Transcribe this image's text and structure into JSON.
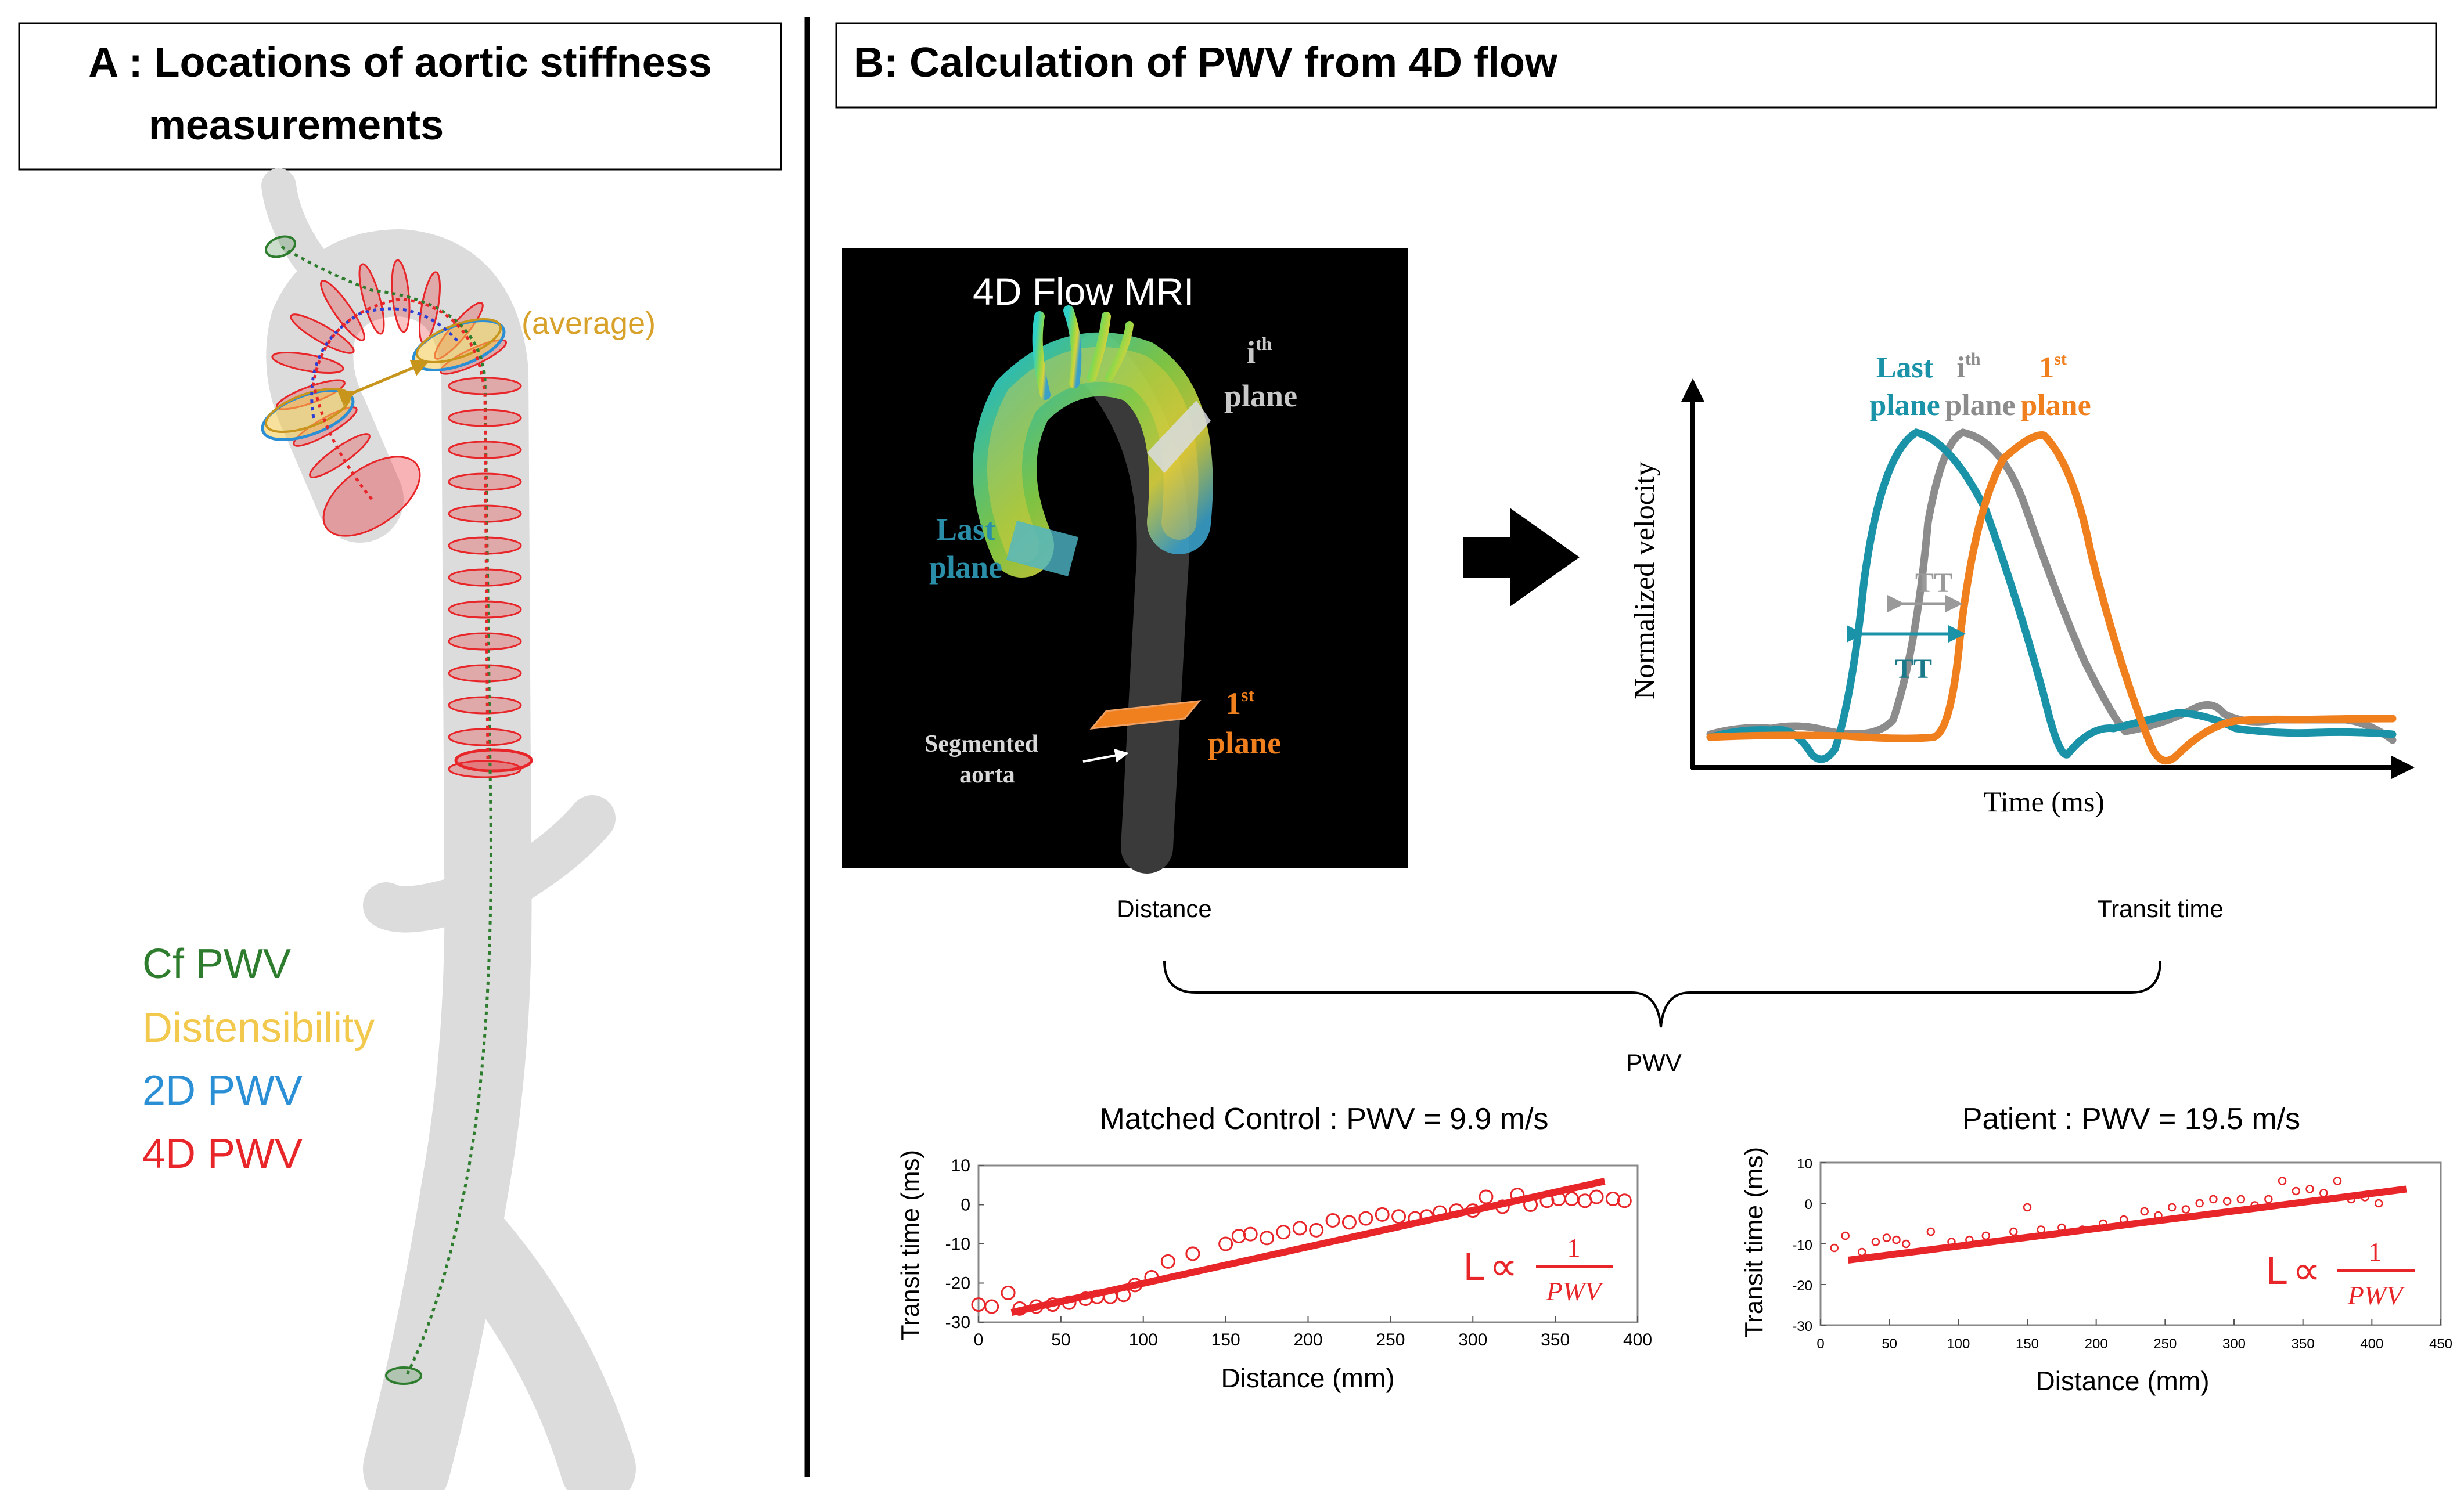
{
  "panel_a": {
    "title_line1": "A : Locations of aortic stiffness",
    "title_line2": "measurements",
    "average_label": "(average)",
    "legend": [
      {
        "label": "Cf PWV",
        "color": "#2e7d2e"
      },
      {
        "label": "Distensibility",
        "color": "#f2c94c"
      },
      {
        "label": "2D PWV",
        "color": "#2b8fd6"
      },
      {
        "label": "4D PWV",
        "color": "#e8262a"
      }
    ]
  },
  "panel_b": {
    "title": "B: Calculation of PWV from 4D flow",
    "mri": {
      "title": "4D Flow MRI",
      "ith_plane_sup": "th",
      "ith_plane_i": "i",
      "ith_plane_label": "plane",
      "last_plane_line1": "Last",
      "last_plane_line2": "plane",
      "first_plane_num": "1",
      "first_plane_sup": "st",
      "first_plane_label": "plane",
      "segmented_line1": "Segmented",
      "segmented_line2": "aorta"
    },
    "velocity_plot": {
      "ylabel": "Normalized velocity",
      "xlabel": "Time (ms)",
      "last_plane_line1": "Last",
      "last_plane_line2": "plane",
      "ith_i": "i",
      "ith_sup": "th",
      "ith_label": "plane",
      "first_num": "1",
      "first_sup": "st",
      "first_label": "plane",
      "tt_gray": "TT",
      "tt_teal": "TT",
      "colors": {
        "last": "#1a93a8",
        "ith": "#8c8c8c",
        "first": "#f07f1e"
      }
    },
    "formula": {
      "distance": "Distance",
      "transit_time": "Transit time",
      "pwv": "PWV"
    },
    "relation": {
      "L": "L",
      "propto": "∝",
      "numerator": "1",
      "denominator": "PWV"
    }
  },
  "chart_data": [
    {
      "type": "scatter",
      "title": "Matched Control : PWV = 9.9 m/s",
      "xlabel": "Distance (mm)",
      "ylabel": "Transit time (ms)",
      "xlim": [
        0,
        400
      ],
      "ylim": [
        -30,
        10
      ],
      "xticks": [
        0,
        50,
        100,
        150,
        200,
        250,
        300,
        350,
        400
      ],
      "yticks": [
        10,
        0,
        -10,
        -20,
        -30
      ],
      "color": "#e8262a",
      "points": [
        [
          0,
          -25.5
        ],
        [
          8,
          -26
        ],
        [
          18,
          -22.5
        ],
        [
          25,
          -26.5
        ],
        [
          35,
          -26
        ],
        [
          45,
          -25.5
        ],
        [
          55,
          -25
        ],
        [
          65,
          -24
        ],
        [
          72,
          -23.5
        ],
        [
          80,
          -23.5
        ],
        [
          88,
          -23
        ],
        [
          95,
          -20.5
        ],
        [
          105,
          -18.5
        ],
        [
          115,
          -14.5
        ],
        [
          130,
          -12.5
        ],
        [
          150,
          -10
        ],
        [
          158,
          -8
        ],
        [
          165,
          -7.5
        ],
        [
          175,
          -8.5
        ],
        [
          185,
          -7
        ],
        [
          195,
          -6
        ],
        [
          205,
          -6.5
        ],
        [
          215,
          -4
        ],
        [
          225,
          -4.5
        ],
        [
          235,
          -3.5
        ],
        [
          245,
          -2.5
        ],
        [
          255,
          -3
        ],
        [
          265,
          -3.5
        ],
        [
          272,
          -3
        ],
        [
          280,
          -2
        ],
        [
          290,
          -1.5
        ],
        [
          300,
          -1.5
        ],
        [
          308,
          2
        ],
        [
          318,
          -0.5
        ],
        [
          327,
          2.5
        ],
        [
          335,
          0
        ],
        [
          345,
          1
        ],
        [
          352,
          1.5
        ],
        [
          360,
          1.5
        ],
        [
          368,
          1
        ],
        [
          375,
          2
        ],
        [
          385,
          1.5
        ],
        [
          392,
          1
        ]
      ],
      "fit": [
        [
          20,
          -27.5
        ],
        [
          380,
          6
        ]
      ]
    },
    {
      "type": "scatter",
      "title": "Patient : PWV = 19.5 m/s",
      "xlabel": "Distance (mm)",
      "ylabel": "Transit time (ms)",
      "xlim": [
        0,
        450
      ],
      "ylim": [
        -30,
        10
      ],
      "xticks": [
        0,
        50,
        100,
        150,
        200,
        250,
        300,
        350,
        400,
        450
      ],
      "yticks": [
        10,
        0,
        -10,
        -20,
        -30
      ],
      "color": "#e8262a",
      "points": [
        [
          10,
          -11
        ],
        [
          18,
          -8
        ],
        [
          30,
          -12
        ],
        [
          40,
          -9.5
        ],
        [
          48,
          -8.5
        ],
        [
          55,
          -9
        ],
        [
          62,
          -10
        ],
        [
          80,
          -7
        ],
        [
          95,
          -9.5
        ],
        [
          108,
          -9
        ],
        [
          120,
          -8
        ],
        [
          140,
          -7
        ],
        [
          150,
          -1
        ],
        [
          160,
          -6.5
        ],
        [
          175,
          -6
        ],
        [
          190,
          -6.5
        ],
        [
          205,
          -5
        ],
        [
          220,
          -4
        ],
        [
          235,
          -2
        ],
        [
          245,
          -3
        ],
        [
          255,
          -1
        ],
        [
          265,
          -1.5
        ],
        [
          275,
          0
        ],
        [
          285,
          1
        ],
        [
          295,
          0.5
        ],
        [
          305,
          1
        ],
        [
          315,
          -0.5
        ],
        [
          325,
          1
        ],
        [
          335,
          5.5
        ],
        [
          345,
          3
        ],
        [
          355,
          3.5
        ],
        [
          365,
          2.5
        ],
        [
          375,
          5.5
        ],
        [
          385,
          1
        ],
        [
          395,
          1.5
        ],
        [
          405,
          0
        ]
      ],
      "fit": [
        [
          20,
          -14
        ],
        [
          425,
          3.5
        ]
      ]
    }
  ]
}
